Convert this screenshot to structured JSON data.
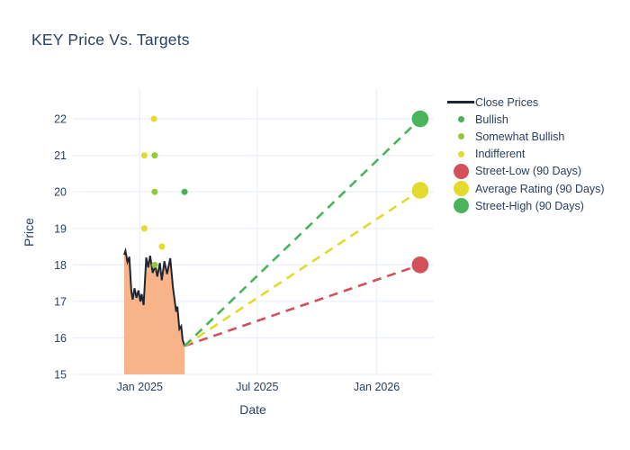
{
  "title": "KEY Price Vs. Targets",
  "colors": {
    "title_text": "#2a3f5f",
    "axis_text": "#2a3f5f",
    "grid": "#ebf0f8",
    "close_line": "#1d2633",
    "close_fill": "#f9b389",
    "bullish": "#45b254",
    "somewhat_bullish": "#93c837",
    "indifferent": "#e2da2c",
    "street_low": "#d25058",
    "average": "#e2da2c",
    "street_high": "#4ab45c",
    "background": "#ffffff"
  },
  "legend": {
    "items": [
      {
        "label": "Close Prices",
        "swatch": "line",
        "color": "#1d2633"
      },
      {
        "label": "Bullish",
        "swatch": "dot-small",
        "color": "#45b254"
      },
      {
        "label": "Somewhat Bullish",
        "swatch": "dot-small",
        "color": "#93c837"
      },
      {
        "label": "Indifferent",
        "swatch": "dot-small",
        "color": "#e2da2c"
      },
      {
        "label": "Street-Low (90 Days)",
        "swatch": "dot-large",
        "color": "#d25058"
      },
      {
        "label": "Average Rating (90 Days)",
        "swatch": "dot-large",
        "color": "#e2da2c"
      },
      {
        "label": "Street-High (90 Days)",
        "swatch": "dot-large",
        "color": "#4ab45c"
      }
    ]
  },
  "chart_data": {
    "type": "line",
    "title": "KEY Price Vs. Targets",
    "xlabel": "Date",
    "ylabel": "Price",
    "ylim": [
      15,
      22.84
    ],
    "xlim": [
      "2024-09-20",
      "2026-03-30"
    ],
    "grid": true,
    "legend_position": "right",
    "y_ticks": [
      15,
      16,
      17,
      18,
      19,
      20,
      21,
      22
    ],
    "x_ticks": [
      {
        "label": "Jan 2025",
        "date": "2025-01-01"
      },
      {
        "label": "Jul 2025",
        "date": "2025-07-01"
      },
      {
        "label": "Jan 2026",
        "date": "2026-01-01"
      }
    ],
    "close_prices": {
      "name": "Close Prices",
      "line_color": "#1d2633",
      "fill_color": "#f9b389",
      "dates": [
        "2024-12-08",
        "2024-12-10",
        "2024-12-13",
        "2024-12-16",
        "2024-12-19",
        "2024-12-21",
        "2024-12-24",
        "2024-12-27",
        "2024-12-30",
        "2025-01-02",
        "2025-01-04",
        "2025-01-07",
        "2025-01-11",
        "2025-01-14",
        "2025-01-17",
        "2025-01-21",
        "2025-01-25",
        "2025-01-28",
        "2025-02-01",
        "2025-02-04",
        "2025-02-08",
        "2025-02-12",
        "2025-02-17",
        "2025-02-21",
        "2025-02-26",
        "2025-02-28",
        "2025-03-03",
        "2025-03-06",
        "2025-03-08",
        "2025-03-11"
      ],
      "values": [
        18.28,
        18.38,
        18.08,
        18.22,
        17.28,
        17.05,
        17.36,
        17.1,
        17.3,
        17.0,
        17.2,
        16.9,
        18.2,
        17.93,
        18.25,
        17.78,
        17.98,
        17.68,
        18.05,
        17.58,
        18.1,
        17.75,
        18.18,
        17.4,
        16.72,
        16.86,
        16.24,
        16.32,
        15.95,
        15.78
      ]
    },
    "rating_series": [
      {
        "name": "Bullish",
        "key": "bullish",
        "color": "#45b254",
        "points": [
          {
            "date": "2025-03-11",
            "price": 20
          }
        ]
      },
      {
        "name": "Somewhat Bullish",
        "key": "somewhat-bullish",
        "color": "#93c837",
        "points": [
          {
            "date": "2025-01-24",
            "price": 21
          },
          {
            "date": "2025-01-24",
            "price": 20
          },
          {
            "date": "2025-01-24",
            "price": 18
          }
        ]
      },
      {
        "name": "Indifferent",
        "key": "indifferent",
        "color": "#e2da2c",
        "points": [
          {
            "date": "2025-01-23",
            "price": 22
          },
          {
            "date": "2025-01-08",
            "price": 21
          },
          {
            "date": "2025-01-08",
            "price": 19
          },
          {
            "date": "2025-02-04",
            "price": 18.5
          }
        ]
      }
    ],
    "targets": {
      "date": "2026-03-09",
      "anchor": {
        "date": "2025-03-11",
        "price": 15.78
      },
      "levels": [
        {
          "name": "Street-Low (90 Days)",
          "key": "street-low",
          "price": 18,
          "color": "#d25058"
        },
        {
          "name": "Average Rating (90 Days)",
          "key": "average",
          "price": 20.04,
          "color": "#e2da2c"
        },
        {
          "name": "Street-High (90 Days)",
          "key": "street-high",
          "price": 22,
          "color": "#4ab45c"
        }
      ]
    }
  }
}
